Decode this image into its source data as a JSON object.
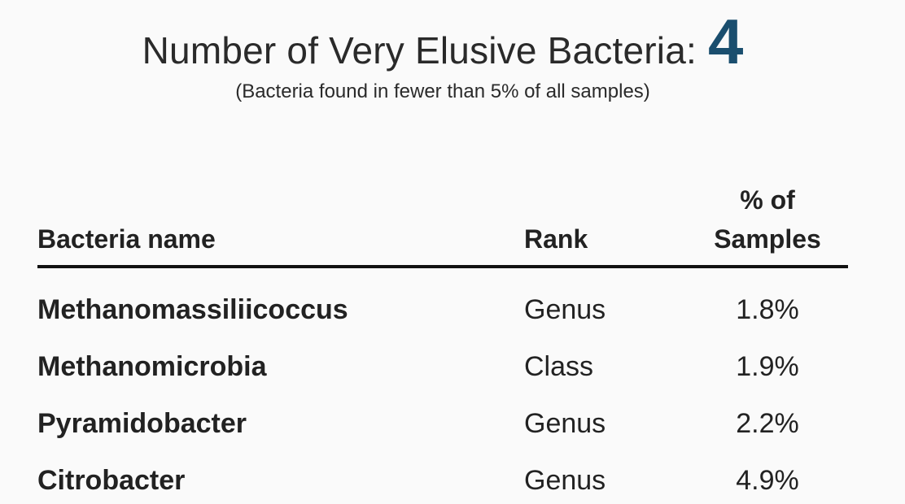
{
  "header": {
    "title": "Number of Very Elusive Bacteria:",
    "count": "4",
    "subtitle": "(Bacteria found in fewer than 5% of all samples)",
    "accent_color": "#1a4e6e"
  },
  "table": {
    "columns": {
      "name": "Bacteria name",
      "rank": "Rank",
      "pct_line1": "% of",
      "pct_line2": "Samples"
    },
    "rows": [
      {
        "name": "Methanomassiliicoccus",
        "rank": "Genus",
        "pct": "1.8%"
      },
      {
        "name": "Methanomicrobia",
        "rank": "Class",
        "pct": "1.9%"
      },
      {
        "name": "Pyramidobacter",
        "rank": "Genus",
        "pct": "2.2%"
      },
      {
        "name": "Citrobacter",
        "rank": "Genus",
        "pct": "4.9%"
      }
    ]
  }
}
